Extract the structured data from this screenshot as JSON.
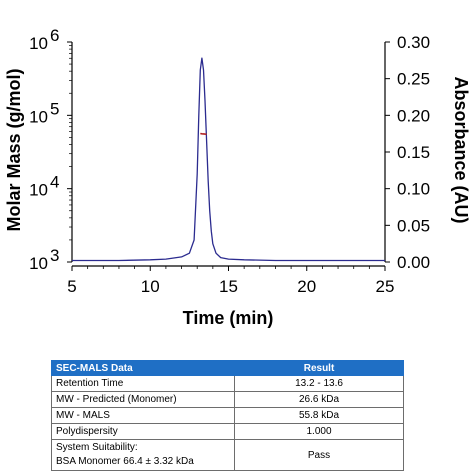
{
  "chart_data": {
    "type": "line",
    "xlabel": "Time (min)",
    "ylabel_left": "Molar Mass (g/mol)",
    "ylabel_right": "Absorbance (AU)",
    "xlim": [
      5,
      25
    ],
    "x_ticks": [
      5,
      10,
      15,
      20,
      25
    ],
    "y_left_scale": "log",
    "y_left_lim": [
      1000,
      1000000
    ],
    "y_left_ticks": [
      {
        "base": "10",
        "exp": "3",
        "value": 1000
      },
      {
        "base": "10",
        "exp": "4",
        "value": 10000
      },
      {
        "base": "10",
        "exp": "5",
        "value": 100000
      },
      {
        "base": "10",
        "exp": "6",
        "value": 1000000
      }
    ],
    "y_right_lim": [
      0,
      0.3
    ],
    "y_right_ticks": [
      "0.00",
      "0.05",
      "0.10",
      "0.15",
      "0.20",
      "0.25",
      "0.30"
    ],
    "series": [
      {
        "axis": "right",
        "color": "#2b2b8f",
        "x": [
          5,
          8,
          10,
          11,
          12,
          12.5,
          12.8,
          13.0,
          13.1,
          13.2,
          13.3,
          13.4,
          13.5,
          13.6,
          13.7,
          13.8,
          13.9,
          14.0,
          14.2,
          14.5,
          15,
          16,
          18,
          20,
          22,
          25
        ],
        "y": [
          0.002,
          0.002,
          0.003,
          0.004,
          0.007,
          0.012,
          0.03,
          0.12,
          0.2,
          0.262,
          0.278,
          0.262,
          0.22,
          0.165,
          0.11,
          0.07,
          0.042,
          0.025,
          0.012,
          0.006,
          0.004,
          0.003,
          0.002,
          0.002,
          0.002,
          0.002
        ]
      },
      {
        "axis": "left",
        "color": "#b22222",
        "x": [
          13.2,
          13.3,
          13.4,
          13.5,
          13.6
        ],
        "y": [
          56500,
          56000,
          55800,
          55500,
          55300
        ]
      }
    ]
  },
  "table": {
    "header": [
      "SEC-MALS Data",
      "Result"
    ],
    "rows": [
      {
        "label": "Retention Time",
        "value": "13.2 - 13.6"
      },
      {
        "label": "MW - Predicted (Monomer)",
        "value": "26.6 kDa"
      },
      {
        "label": "MW - MALS",
        "value": "55.8 kDa"
      },
      {
        "label": "Polydispersity",
        "value": "1.000"
      }
    ],
    "last_row": {
      "label_line1": "System Suitability:",
      "label_line2": "BSA Monomer 66.4 ± 3.32 kDa",
      "value": "Pass"
    }
  }
}
